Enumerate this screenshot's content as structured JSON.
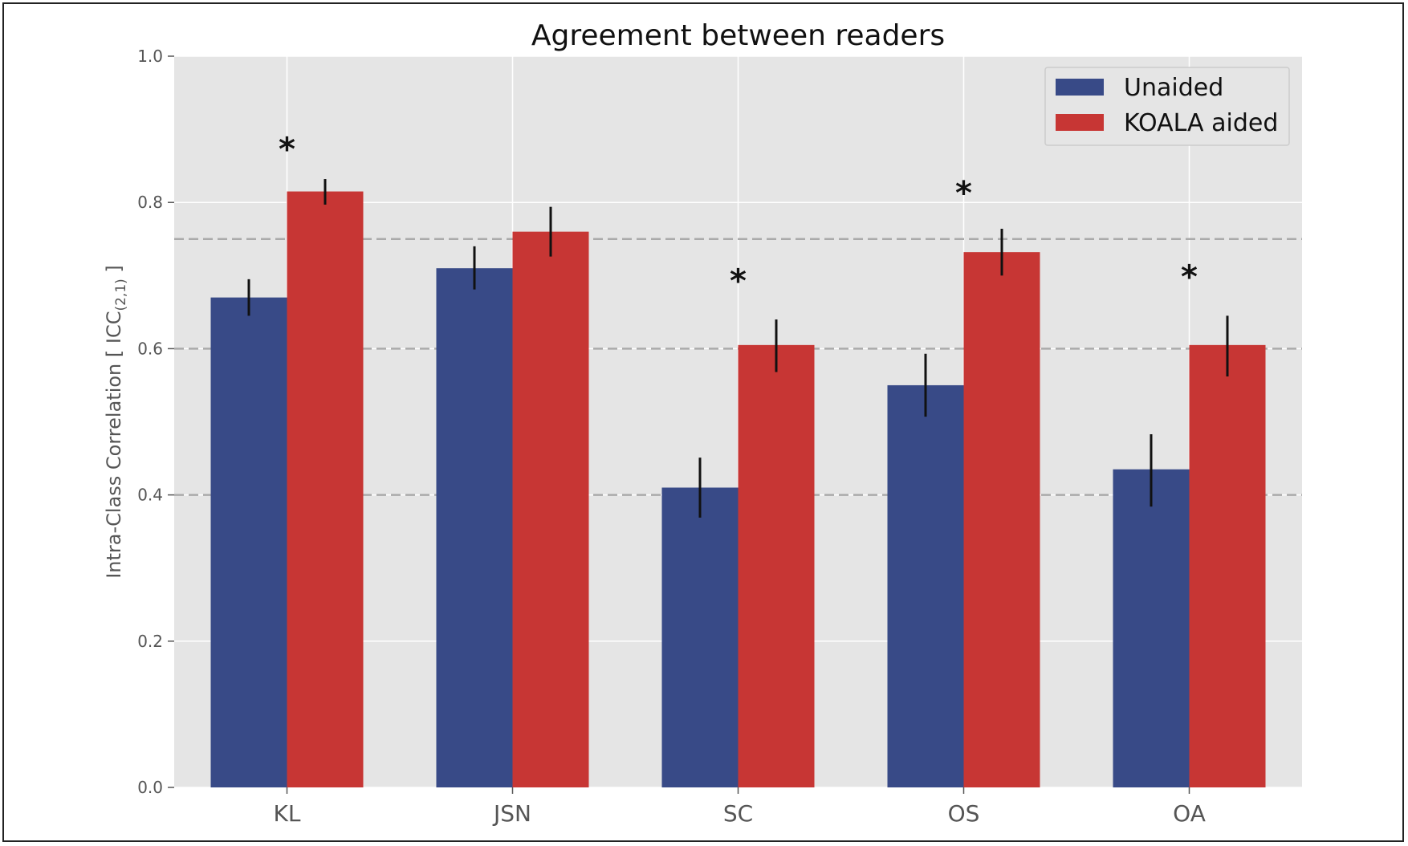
{
  "chart_data": {
    "type": "bar",
    "title": "Agreement between readers",
    "ylabel": "Intra-Class Correlation [ ICC",
    "ylabel_sub": "(2,1)",
    "ylabel_end": " ]",
    "xlabel": "",
    "ylim": [
      0,
      1.0
    ],
    "yticks": [
      "0.0",
      "0.2",
      "0.4",
      "0.6",
      "0.8",
      "1.0"
    ],
    "ytick_values": [
      0,
      0.2,
      0.4,
      0.6,
      0.8,
      1.0
    ],
    "categories": [
      "KL",
      "JSN",
      "SC",
      "OS",
      "OA"
    ],
    "series": [
      {
        "name": "Unaided",
        "color": "#384a87",
        "values": [
          0.67,
          0.71,
          0.41,
          0.55,
          0.435
        ],
        "err_low": [
          0.645,
          0.681,
          0.369,
          0.507,
          0.384
        ],
        "err_high": [
          0.695,
          0.74,
          0.451,
          0.593,
          0.483
        ]
      },
      {
        "name": "KOALA aided",
        "color": "#c73634",
        "values": [
          0.815,
          0.76,
          0.605,
          0.732,
          0.605
        ],
        "err_low": [
          0.797,
          0.726,
          0.568,
          0.7,
          0.562
        ],
        "err_high": [
          0.832,
          0.794,
          0.64,
          0.764,
          0.645
        ]
      }
    ],
    "reference_lines": [
      0.4,
      0.6,
      0.75
    ],
    "significance": [
      {
        "category": "KL",
        "label": "*",
        "y": 0.88
      },
      {
        "category": "SC",
        "label": "*",
        "y": 0.7
      },
      {
        "category": "OS",
        "label": "*",
        "y": 0.82
      },
      {
        "category": "OA",
        "label": "*",
        "y": 0.705
      }
    ],
    "legend_position": "top-right",
    "grid": true,
    "background": "#e5e5e5"
  }
}
